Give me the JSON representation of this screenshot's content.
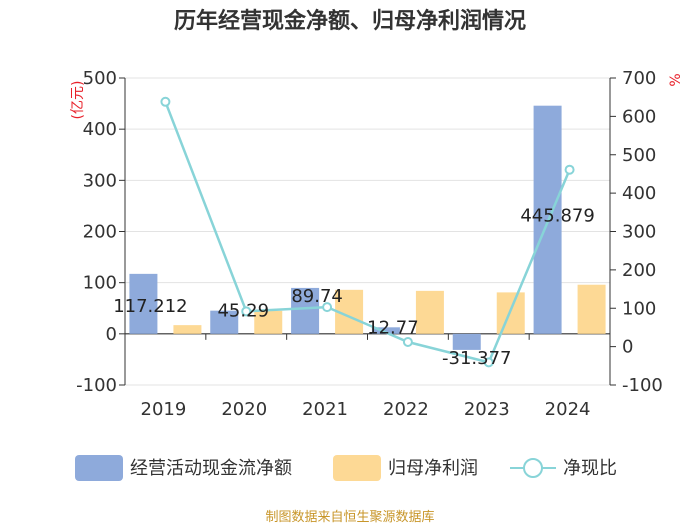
{
  "title": "历年经营现金净额、归母净利润情况",
  "source": "制图数据来自恒生聚源数据库",
  "colors": {
    "cash_flow": "#8eaadb",
    "net_profit": "#fdd995",
    "ratio_line": "#88d4d8",
    "axis": "#333333",
    "unit": "#e8202a"
  },
  "chart_data": {
    "type": "bar",
    "title": "历年经营现金净额、归母净利润情况",
    "categories": [
      "2019",
      "2020",
      "2021",
      "2022",
      "2023",
      "2024"
    ],
    "ylabel_left": "(亿元)",
    "ylabel_right": "%",
    "ylim_left": [
      -100,
      500
    ],
    "ylim_right": [
      -100,
      700
    ],
    "yticks_left": [
      "-100",
      "0",
      "100",
      "200",
      "300",
      "400",
      "500"
    ],
    "yticks_right": [
      "-100",
      "0",
      "100",
      "200",
      "300",
      "400",
      "500",
      "600",
      "700"
    ],
    "legend_position": "bottom",
    "grid": true,
    "series": [
      {
        "name": "经营活动现金流净额",
        "type": "bar",
        "axis": "left",
        "values": [
          117.212,
          45.29,
          89.74,
          12.77,
          -31.377,
          445.879
        ],
        "labels": [
          "117.212",
          "45.29",
          "89.74",
          "12.77",
          "-31.377",
          "445.879"
        ]
      },
      {
        "name": "归母净利润",
        "type": "bar",
        "axis": "left",
        "values": [
          17,
          45,
          86,
          84,
          81,
          96
        ]
      },
      {
        "name": "净现比",
        "type": "line",
        "axis": "right",
        "values": [
          638,
          92,
          103,
          12,
          -41,
          461
        ]
      }
    ]
  }
}
